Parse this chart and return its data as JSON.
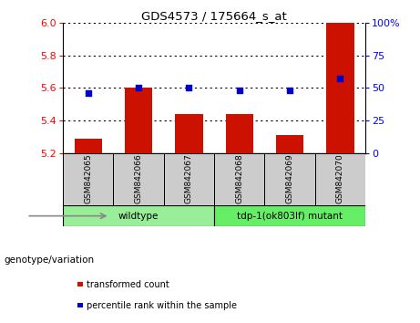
{
  "title": "GDS4573 / 175664_s_at",
  "samples": [
    "GSM842065",
    "GSM842066",
    "GSM842067",
    "GSM842068",
    "GSM842069",
    "GSM842070"
  ],
  "bar_values": [
    5.29,
    5.6,
    5.44,
    5.44,
    5.31,
    6.0
  ],
  "bar_bottom": 5.2,
  "percentile_values": [
    5.57,
    5.6,
    5.6,
    5.585,
    5.585,
    5.66
  ],
  "left_ylim": [
    5.2,
    6.0
  ],
  "left_yticks": [
    5.2,
    5.4,
    5.6,
    5.8,
    6.0
  ],
  "right_ylim": [
    0,
    100
  ],
  "right_yticks": [
    0,
    25,
    50,
    75,
    100
  ],
  "right_yticklabels": [
    "0",
    "25",
    "50",
    "75",
    "100%"
  ],
  "bar_color": "#CC1100",
  "dot_color": "#0000CC",
  "genotype_groups": [
    {
      "label": "wildtype",
      "count": 3,
      "color": "#99EE99"
    },
    {
      "label": "tdp-1(ok803lf) mutant",
      "count": 3,
      "color": "#66EE66"
    }
  ],
  "legend_items": [
    {
      "label": "transformed count",
      "color": "#CC1100"
    },
    {
      "label": "percentile rank within the sample",
      "color": "#0000CC"
    }
  ],
  "xlabel_left": "genotype/variation",
  "grid_color": "black",
  "bg_color": "#FFFFFF",
  "sample_box_color": "#CCCCCC"
}
